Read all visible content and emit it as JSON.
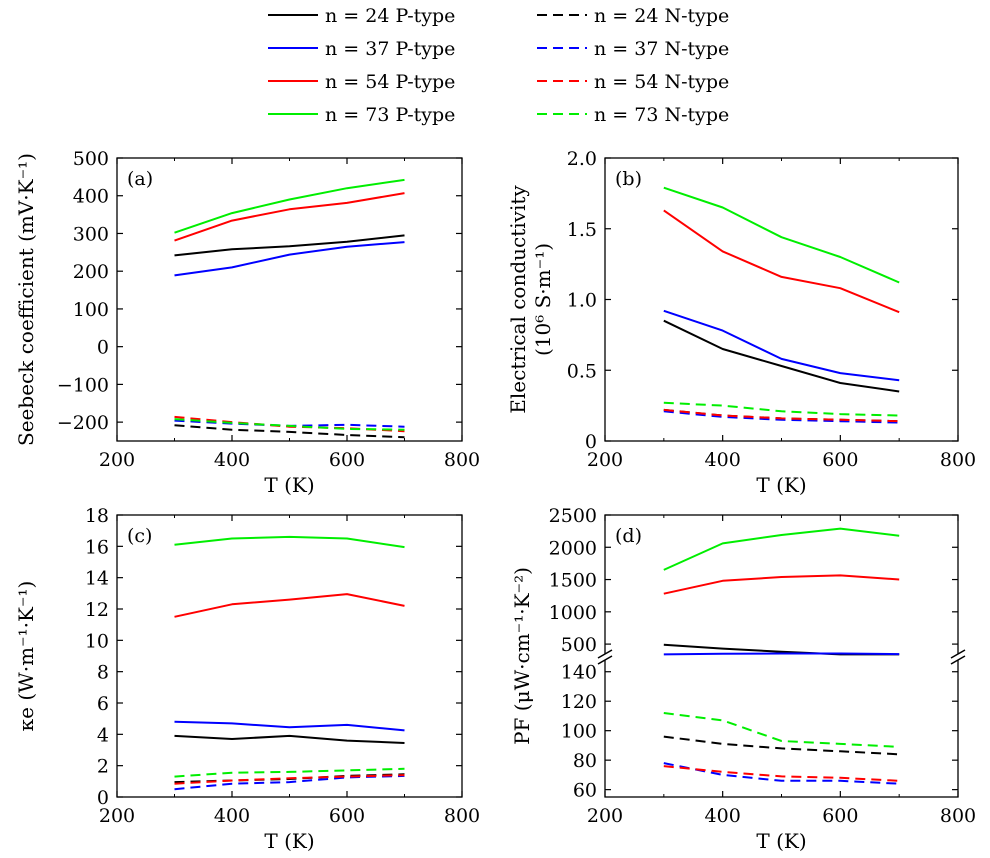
{
  "colors": {
    "n24": "#000000",
    "n37": "#0000ff",
    "n54": "#ff0000",
    "n73": "#00ee00"
  },
  "legend": {
    "entries": [
      {
        "label": "n = 24 P-type",
        "n": "n = 24",
        "type": "P-type",
        "color": "#000000",
        "dashed": false
      },
      {
        "label": "n = 24 N-type",
        "n": "n = 24",
        "type": "N-type",
        "color": "#000000",
        "dashed": true
      },
      {
        "label": "n = 37 P-type",
        "n": "n = 37",
        "type": "P-type",
        "color": "#0000ff",
        "dashed": false
      },
      {
        "label": "n = 37 N-type",
        "n": "n = 37",
        "type": "N-type",
        "color": "#0000ff",
        "dashed": true
      },
      {
        "label": "n = 54 P-type",
        "n": "n = 54",
        "type": "P-type",
        "color": "#ff0000",
        "dashed": false
      },
      {
        "label": "n = 54 N-type",
        "n": "n = 54",
        "type": "N-type",
        "color": "#ff0000",
        "dashed": true
      },
      {
        "label": "n = 73 P-type",
        "n": "n = 73",
        "type": "P-type",
        "color": "#00ee00",
        "dashed": false
      },
      {
        "label": "n = 73 N-type",
        "n": "n = 73",
        "type": "N-type",
        "color": "#00ee00",
        "dashed": true
      }
    ]
  },
  "chart_data": [
    {
      "id": "a",
      "type": "line",
      "panel_label": "(a)",
      "xlabel": "T (K)",
      "ylabel": "Seebeck coefficient (mV·K⁻¹)",
      "xlim": [
        200,
        800
      ],
      "ylim": [
        -250,
        500
      ],
      "xticks": [
        200,
        400,
        600,
        800
      ],
      "yticks": [
        -200,
        -100,
        0,
        100,
        200,
        300,
        400,
        500
      ],
      "ytick_labels": [
        "−200",
        "−100",
        "0",
        "100",
        "200",
        "300",
        "400",
        "500"
      ],
      "x": [
        300,
        400,
        500,
        600,
        700
      ],
      "series": [
        {
          "name": "n = 24 P-type",
          "color": "#000000",
          "dashed": false,
          "values": [
            242,
            258,
            266,
            278,
            295
          ]
        },
        {
          "name": "n = 37 P-type",
          "color": "#0000ff",
          "dashed": false,
          "values": [
            189,
            210,
            244,
            265,
            277
          ]
        },
        {
          "name": "n = 54 P-type",
          "color": "#ff0000",
          "dashed": false,
          "values": [
            281,
            334,
            364,
            381,
            407
          ]
        },
        {
          "name": "n = 73 P-type",
          "color": "#00ee00",
          "dashed": false,
          "values": [
            302,
            354,
            390,
            420,
            442
          ]
        },
        {
          "name": "n = 24 N-type",
          "color": "#000000",
          "dashed": true,
          "values": [
            -208,
            -220,
            -226,
            -234,
            -240
          ]
        },
        {
          "name": "n = 37 N-type",
          "color": "#0000ff",
          "dashed": true,
          "values": [
            -196,
            -204,
            -210,
            -207,
            -212
          ]
        },
        {
          "name": "n = 54 N-type",
          "color": "#ff0000",
          "dashed": true,
          "values": [
            -186,
            -200,
            -212,
            -216,
            -224
          ]
        },
        {
          "name": "n = 73 N-type",
          "color": "#00ee00",
          "dashed": true,
          "values": [
            -192,
            -202,
            -210,
            -218,
            -220
          ]
        }
      ]
    },
    {
      "id": "b",
      "type": "line",
      "panel_label": "(b)",
      "xlabel": "T (K)",
      "ylabel": "Electrical conductivity",
      "ylabel2": "(10⁶ S·m⁻¹)",
      "xlim": [
        200,
        800
      ],
      "ylim": [
        0,
        2.0
      ],
      "xticks": [
        200,
        400,
        600,
        800
      ],
      "yticks": [
        0,
        0.5,
        1.0,
        1.5,
        2.0
      ],
      "ytick_labels": [
        "0",
        "0.5",
        "1.0",
        "1.5",
        "2.0"
      ],
      "x": [
        300,
        400,
        500,
        600,
        700
      ],
      "series": [
        {
          "name": "n = 24 P-type",
          "color": "#000000",
          "dashed": false,
          "values": [
            0.85,
            0.65,
            0.53,
            0.41,
            0.35
          ]
        },
        {
          "name": "n = 37 P-type",
          "color": "#0000ff",
          "dashed": false,
          "values": [
            0.92,
            0.78,
            0.58,
            0.48,
            0.43
          ]
        },
        {
          "name": "n = 54 P-type",
          "color": "#ff0000",
          "dashed": false,
          "values": [
            1.63,
            1.34,
            1.16,
            1.08,
            0.91
          ]
        },
        {
          "name": "n = 73 P-type",
          "color": "#00ee00",
          "dashed": false,
          "values": [
            1.79,
            1.65,
            1.44,
            1.3,
            1.12
          ]
        },
        {
          "name": "n = 24 N-type",
          "color": "#000000",
          "dashed": true,
          "values": [
            0.22,
            0.18,
            0.16,
            0.15,
            0.14
          ]
        },
        {
          "name": "n = 37 N-type",
          "color": "#0000ff",
          "dashed": true,
          "values": [
            0.21,
            0.17,
            0.15,
            0.14,
            0.13
          ]
        },
        {
          "name": "n = 54 N-type",
          "color": "#ff0000",
          "dashed": true,
          "values": [
            0.22,
            0.18,
            0.16,
            0.15,
            0.14
          ]
        },
        {
          "name": "n = 73 N-type",
          "color": "#00ee00",
          "dashed": true,
          "values": [
            0.27,
            0.25,
            0.21,
            0.19,
            0.18
          ]
        }
      ]
    },
    {
      "id": "c",
      "type": "line",
      "panel_label": "(c)",
      "xlabel": "T (K)",
      "ylabel": "κe (W·m⁻¹·K⁻¹)",
      "xlim": [
        200,
        800
      ],
      "ylim": [
        0,
        18
      ],
      "xticks": [
        200,
        400,
        600,
        800
      ],
      "yticks": [
        0,
        2,
        4,
        6,
        8,
        10,
        12,
        14,
        16,
        18
      ],
      "ytick_labels": [
        "0",
        "2",
        "4",
        "6",
        "8",
        "10",
        "12",
        "14",
        "16",
        "18"
      ],
      "x": [
        300,
        400,
        500,
        600,
        700
      ],
      "series": [
        {
          "name": "n = 24 P-type",
          "color": "#000000",
          "dashed": false,
          "values": [
            3.9,
            3.7,
            3.9,
            3.6,
            3.45
          ]
        },
        {
          "name": "n = 37 P-type",
          "color": "#0000ff",
          "dashed": false,
          "values": [
            4.8,
            4.7,
            4.45,
            4.6,
            4.25
          ]
        },
        {
          "name": "n = 54 P-type",
          "color": "#ff0000",
          "dashed": false,
          "values": [
            11.5,
            12.3,
            12.6,
            12.95,
            12.2
          ]
        },
        {
          "name": "n = 73 P-type",
          "color": "#00ee00",
          "dashed": false,
          "values": [
            16.1,
            16.5,
            16.6,
            16.5,
            15.95
          ]
        },
        {
          "name": "n = 24 N-type",
          "color": "#000000",
          "dashed": true,
          "values": [
            0.95,
            1.05,
            1.15,
            1.35,
            1.45
          ]
        },
        {
          "name": "n = 37 N-type",
          "color": "#0000ff",
          "dashed": true,
          "values": [
            0.5,
            0.85,
            0.95,
            1.25,
            1.35
          ]
        },
        {
          "name": "n = 54 N-type",
          "color": "#ff0000",
          "dashed": true,
          "values": [
            0.85,
            1.05,
            1.2,
            1.3,
            1.4
          ]
        },
        {
          "name": "n = 73 N-type",
          "color": "#00ee00",
          "dashed": true,
          "values": [
            1.3,
            1.55,
            1.6,
            1.7,
            1.8
          ]
        }
      ]
    },
    {
      "id": "d",
      "type": "line",
      "panel_label": "(d)",
      "xlabel": "T (K)",
      "ylabel": "PF (μW·cm⁻¹·K⁻²)",
      "xlim": [
        200,
        800
      ],
      "broken_axis": true,
      "upper_ylim": [
        300,
        2500
      ],
      "upper_yticks": [
        500,
        1000,
        1500,
        2000,
        2500
      ],
      "lower_ylim": [
        55,
        150
      ],
      "lower_yticks": [
        60,
        80,
        100,
        120,
        140
      ],
      "xticks": [
        200,
        400,
        600,
        800
      ],
      "x": [
        300,
        400,
        500,
        600,
        700
      ],
      "series": [
        {
          "name": "n = 24 P-type",
          "color": "#000000",
          "dashed": false,
          "segment": "upper",
          "values": [
            490,
            430,
            380,
            340,
            340
          ]
        },
        {
          "name": "n = 37 P-type",
          "color": "#0000ff",
          "dashed": false,
          "segment": "upper",
          "values": [
            340,
            350,
            355,
            355,
            345
          ]
        },
        {
          "name": "n = 54 P-type",
          "color": "#ff0000",
          "dashed": false,
          "segment": "upper",
          "values": [
            1280,
            1480,
            1540,
            1565,
            1500
          ]
        },
        {
          "name": "n = 73 P-type",
          "color": "#00ee00",
          "dashed": false,
          "segment": "upper",
          "values": [
            1650,
            2060,
            2190,
            2290,
            2180
          ]
        },
        {
          "name": "n = 24 N-type",
          "color": "#000000",
          "dashed": true,
          "segment": "lower",
          "values": [
            96,
            91,
            88,
            86,
            84
          ]
        },
        {
          "name": "n = 37 N-type",
          "color": "#0000ff",
          "dashed": true,
          "segment": "lower",
          "values": [
            78,
            70,
            66,
            66,
            64
          ]
        },
        {
          "name": "n = 54 N-type",
          "color": "#ff0000",
          "dashed": true,
          "segment": "lower",
          "values": [
            76,
            72,
            69,
            68,
            66
          ]
        },
        {
          "name": "n = 73 N-type",
          "color": "#00ee00",
          "dashed": true,
          "segment": "lower",
          "values": [
            112,
            107,
            93,
            91,
            89
          ]
        }
      ]
    }
  ]
}
